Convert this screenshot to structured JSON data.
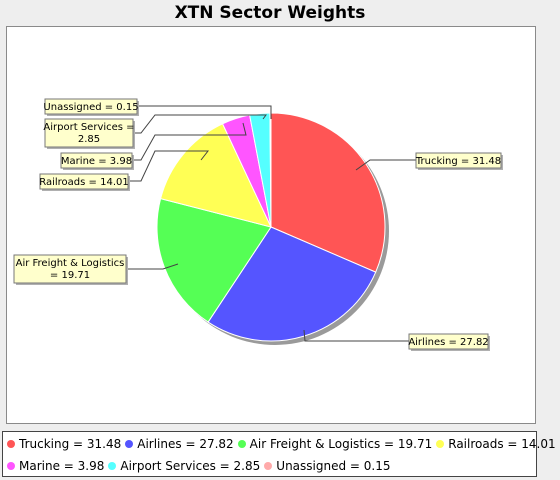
{
  "chart_data": {
    "type": "pie",
    "title": "XTN Sector Weights",
    "categories": [
      "Trucking",
      "Airlines",
      "Air Freight & Logistics",
      "Railroads",
      "Marine",
      "Airport Services",
      "Unassigned"
    ],
    "values": [
      31.48,
      27.82,
      19.71,
      14.01,
      3.98,
      2.85,
      0.15
    ],
    "colors": [
      "#ff5555",
      "#5555ff",
      "#55ff55",
      "#ffff55",
      "#ff55ff",
      "#55ffff",
      "#ffaaaa"
    ],
    "labels": [
      "Trucking = 31.48",
      "Airlines = 27.82",
      [
        "Air Freight & Logistics",
        "= 19.71"
      ],
      "Railroads = 14.01",
      "Marine = 3.98",
      [
        "Airport Services =",
        "2.85"
      ],
      "Unassigned = 0.15"
    ],
    "legend_position": "bottom",
    "legend_labels": [
      "Trucking = 31.48",
      "Airlines = 27.82",
      "Air Freight & Logistics = 19.71",
      "Railroads = 14.01",
      "Marine = 3.98",
      "Airport Services = 2.85",
      "Unassigned = 0.15"
    ]
  }
}
